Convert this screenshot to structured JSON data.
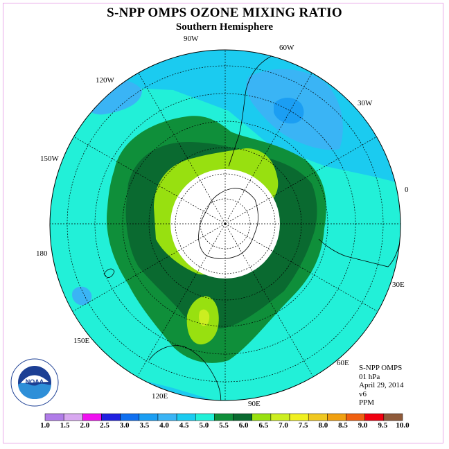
{
  "title": "S-NPP OMPS OZONE MIXING RATIO",
  "subtitle": "Southern Hemisphere",
  "longitude_labels": [
    "90W",
    "60W",
    "120W",
    "30W",
    "150W",
    "0",
    "180",
    "30E",
    "150E",
    "60E",
    "120E",
    "90E"
  ],
  "info": {
    "product": "S-NPP OMPS",
    "level": "01 hPa",
    "date": "April 29, 2014",
    "version": "v6",
    "units": "PPM"
  },
  "logo_text": "NOAA",
  "colors": {
    "frame": "#e8a9e8",
    "missing_data": "#ffffff"
  },
  "color_scale": {
    "ticks": [
      "1.0",
      "1.5",
      "2.0",
      "2.5",
      "3.0",
      "3.5",
      "4.0",
      "4.5",
      "5.0",
      "5.5",
      "6.0",
      "6.5",
      "7.0",
      "7.5",
      "8.0",
      "8.5",
      "9.0",
      "9.5",
      "10.0"
    ],
    "colors": [
      "#b07ce8",
      "#d8a8f0",
      "#f010f0",
      "#2020e0",
      "#1070f0",
      "#1b9ef3",
      "#3ab4f5",
      "#1bcbf0",
      "#22f0d8",
      "#0f8f3a",
      "#0a6a30",
      "#98e010",
      "#ccee20",
      "#f0f020",
      "#f0c820",
      "#f0a010",
      "#f06010",
      "#f00010",
      "#8f5a3a"
    ]
  },
  "legend_map": {
    "3.5": "#1b9ef3",
    "4.0": "#3ab4f5",
    "4.5": "#1bcbf0",
    "5.0": "#22f0d8",
    "5.5": "#0f8f3a",
    "6.0": "#0a6a30",
    "6.5": "#98e010",
    "7.0": "#ccee20"
  }
}
